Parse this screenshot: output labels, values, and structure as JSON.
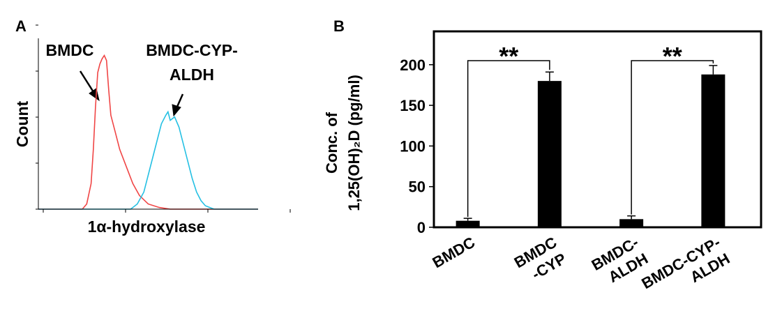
{
  "chart_data": [
    {
      "type": "line",
      "title": "A",
      "xlabel": "1α-hydroxylase",
      "ylabel": "Count",
      "xlim": [
        0,
        100
      ],
      "ylim": [
        0,
        100
      ],
      "annotations": [
        "BMDC",
        "BMDC-CYP-",
        "ALDH"
      ],
      "series": [
        {
          "name": "BMDC",
          "color": "#f04545",
          "x": [
            0,
            20,
            22,
            24,
            25,
            26,
            27,
            28,
            29,
            30,
            31,
            32,
            33,
            35,
            37,
            40,
            43,
            46,
            50,
            55,
            60,
            100
          ],
          "values": [
            0,
            0,
            3,
            15,
            35,
            60,
            80,
            85,
            88,
            90,
            87,
            70,
            55,
            45,
            35,
            25,
            15,
            8,
            3,
            1,
            0,
            0
          ]
        },
        {
          "name": "BMDC-CYP-ALDH",
          "color": "#25c0e3",
          "x": [
            0,
            42,
            45,
            48,
            50,
            52,
            54,
            56,
            58,
            59,
            60,
            62,
            64,
            66,
            68,
            70,
            72,
            74,
            76,
            78,
            80,
            100
          ],
          "values": [
            0,
            0,
            3,
            10,
            20,
            30,
            40,
            50,
            55,
            57,
            52,
            54,
            48,
            38,
            28,
            18,
            10,
            5,
            2,
            1,
            0,
            0
          ]
        }
      ]
    },
    {
      "type": "bar",
      "title": "B",
      "ylabel": [
        "Conc. of",
        "1,25(OH)₂D (pg/ml)"
      ],
      "categories": [
        [
          "BMDC"
        ],
        [
          "BMDC",
          "-CYP"
        ],
        [
          "BMDC-",
          "ALDH"
        ],
        [
          "BMDC-CYP-",
          "ALDH"
        ]
      ],
      "ylim": [
        0,
        241
      ],
      "yticks": [
        0,
        50,
        100,
        150,
        200
      ],
      "annotations": [
        "**",
        "**"
      ],
      "series": [
        {
          "color": "#000000",
          "values": [
            8,
            180,
            10,
            188
          ],
          "errors": [
            3,
            11,
            4,
            11
          ]
        }
      ]
    }
  ]
}
